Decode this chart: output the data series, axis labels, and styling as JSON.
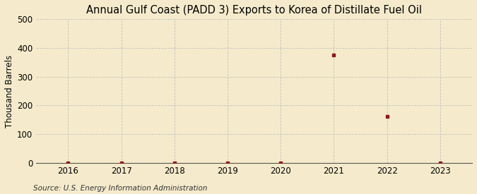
{
  "title": "Annual Gulf Coast (PADD 3) Exports to Korea of Distillate Fuel Oil",
  "ylabel": "Thousand Barrels",
  "source": "Source: U.S. Energy Information Administration",
  "years": [
    2016,
    2017,
    2018,
    2019,
    2020,
    2021,
    2022,
    2023
  ],
  "values": [
    0,
    0,
    0,
    0,
    0,
    375,
    163,
    0
  ],
  "marker_color": "#8B1A1A",
  "background_color": "#F5EBCC",
  "grid_color": "#BBBBBB",
  "xlim": [
    2015.4,
    2023.6
  ],
  "ylim": [
    0,
    500
  ],
  "yticks": [
    0,
    100,
    200,
    300,
    400,
    500
  ],
  "xticks": [
    2016,
    2017,
    2018,
    2019,
    2020,
    2021,
    2022,
    2023
  ],
  "title_fontsize": 10.5,
  "label_fontsize": 8.5,
  "tick_fontsize": 8.5,
  "source_fontsize": 7.5
}
